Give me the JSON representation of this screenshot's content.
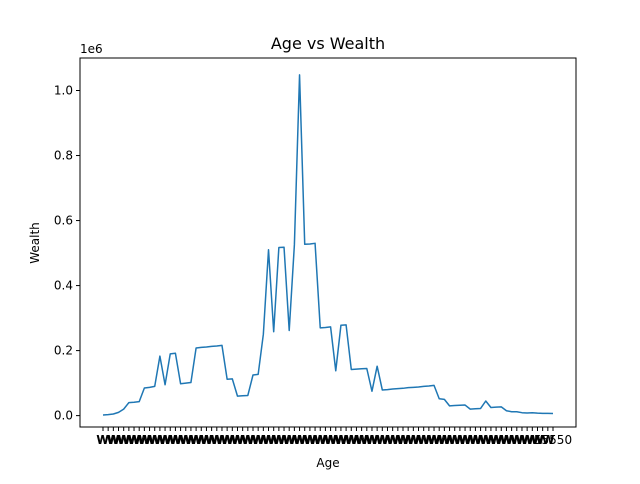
{
  "chart_data": {
    "type": "line",
    "title": "Age vs Wealth",
    "xlabel": "Age",
    "ylabel": "Wealth",
    "y_offset_label": "1e6",
    "y_scale": 1000000,
    "ylim": [
      -35000,
      1100000
    ],
    "yticks": [
      0,
      200000,
      400000,
      600000,
      800000,
      1000000
    ],
    "ytick_labels": [
      "0.0",
      "0.2",
      "0.4",
      "0.6",
      "0.8",
      "1.0"
    ],
    "xtick_labels_note": "x tick labels are densely overlapped and illegible except the last visible text",
    "xtick_last_visible": "55550",
    "grid": false,
    "legend": "none",
    "line_color": "#1f77b4",
    "series": [
      {
        "values": [
          2000,
          3000,
          5000,
          10000,
          20000,
          40000,
          41000,
          43000,
          85000,
          87000,
          90000,
          183000,
          95000,
          190000,
          192000,
          98000,
          100000,
          102000,
          208000,
          210000,
          211000,
          213000,
          214000,
          216000,
          112000,
          113000,
          60000,
          61000,
          62000,
          125000,
          127000,
          250000,
          510000,
          258000,
          517000,
          518000,
          262000,
          525000,
          1048000,
          527000,
          528000,
          530000,
          270000,
          271000,
          273000,
          138000,
          278000,
          279000,
          142000,
          143000,
          144000,
          145000,
          75000,
          152000,
          79000,
          80000,
          82000,
          83000,
          84000,
          86000,
          87000,
          88000,
          90000,
          91000,
          93000,
          52000,
          50000,
          30000,
          31000,
          32000,
          32500,
          20000,
          21000,
          22000,
          45000,
          25000,
          26000,
          27000,
          15000,
          12000,
          12000,
          9000,
          8000,
          9000,
          7500,
          7000,
          7000,
          6500
        ]
      }
    ]
  }
}
